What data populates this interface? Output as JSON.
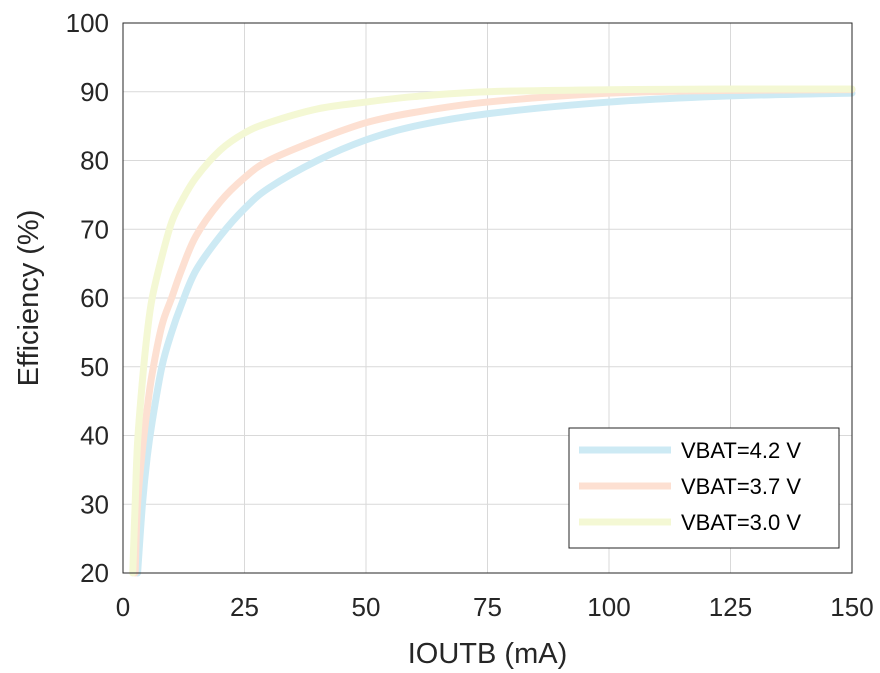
{
  "chart_data": {
    "type": "line",
    "title": "",
    "xlabel": "IOUTB (mA)",
    "ylabel": "Efficiency (%)",
    "xlim": [
      0,
      150
    ],
    "ylim": [
      20,
      100
    ],
    "xticks": [
      0,
      25,
      50,
      75,
      100,
      125,
      150
    ],
    "yticks": [
      20,
      30,
      40,
      50,
      60,
      70,
      80,
      90,
      100
    ],
    "grid": true,
    "legend_position": "bottom-right",
    "series": [
      {
        "name": "VBAT=4.2 V",
        "color": "#cdeaf4",
        "points": [
          [
            3,
            20
          ],
          [
            4,
            30
          ],
          [
            5,
            37
          ],
          [
            6,
            42
          ],
          [
            8,
            50
          ],
          [
            10,
            55
          ],
          [
            12,
            59
          ],
          [
            15,
            64
          ],
          [
            20,
            69
          ],
          [
            25,
            73
          ],
          [
            30,
            76
          ],
          [
            40,
            80
          ],
          [
            50,
            83
          ],
          [
            60,
            85
          ],
          [
            75,
            86.8
          ],
          [
            100,
            88.5
          ],
          [
            125,
            89.4
          ],
          [
            150,
            89.8
          ]
        ]
      },
      {
        "name": "VBAT=3.7 V",
        "color": "#fde0d2",
        "points": [
          [
            2.5,
            20
          ],
          [
            3,
            30
          ],
          [
            4,
            38
          ],
          [
            5,
            44
          ],
          [
            6,
            49
          ],
          [
            8,
            56
          ],
          [
            10,
            60
          ],
          [
            12,
            64
          ],
          [
            15,
            69
          ],
          [
            20,
            74
          ],
          [
            25,
            77.5
          ],
          [
            30,
            80
          ],
          [
            40,
            83
          ],
          [
            50,
            85.5
          ],
          [
            60,
            87
          ],
          [
            75,
            88.5
          ],
          [
            100,
            89.8
          ],
          [
            125,
            90.2
          ],
          [
            150,
            90.3
          ]
        ]
      },
      {
        "name": "VBAT=3.0 V",
        "color": "#f4f8d4",
        "points": [
          [
            2,
            20
          ],
          [
            2.5,
            30
          ],
          [
            3,
            39
          ],
          [
            4,
            48
          ],
          [
            5,
            55
          ],
          [
            6,
            60
          ],
          [
            8,
            66
          ],
          [
            10,
            71
          ],
          [
            12,
            74
          ],
          [
            15,
            77.5
          ],
          [
            20,
            81.5
          ],
          [
            25,
            84
          ],
          [
            30,
            85.5
          ],
          [
            40,
            87.5
          ],
          [
            50,
            88.5
          ],
          [
            60,
            89.3
          ],
          [
            75,
            90
          ],
          [
            100,
            90.3
          ],
          [
            125,
            90.4
          ],
          [
            150,
            90.4
          ]
        ]
      }
    ]
  }
}
